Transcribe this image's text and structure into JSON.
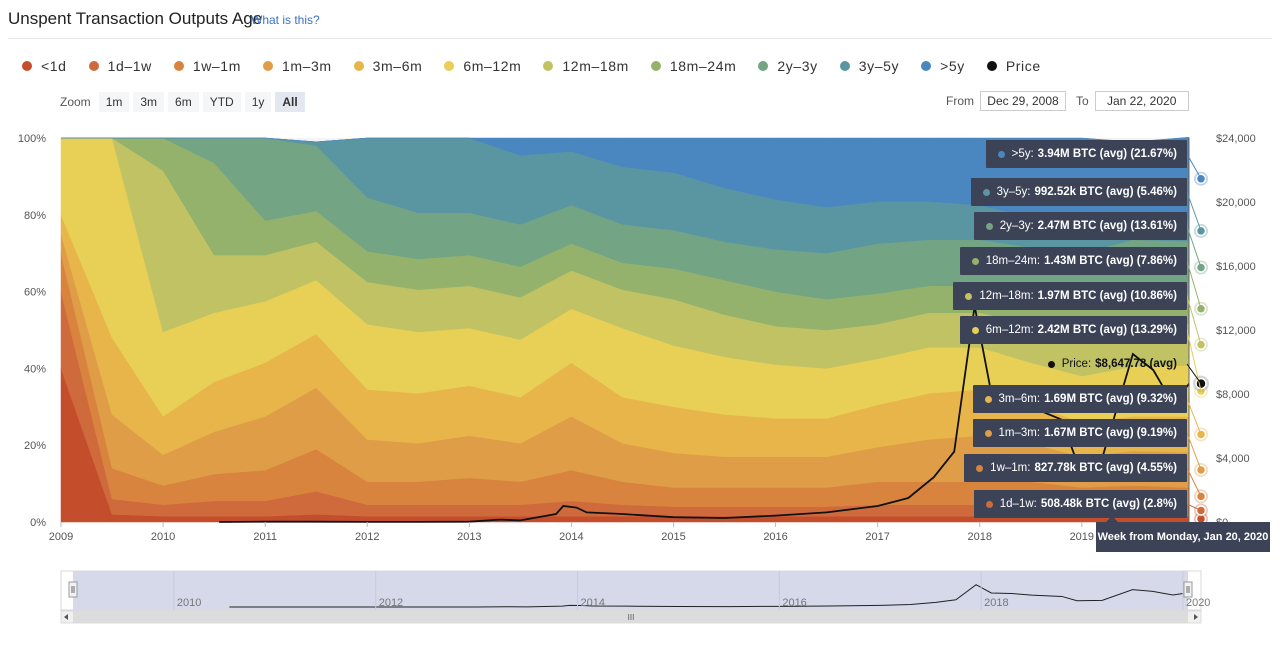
{
  "header": {
    "title": "Unspent Transaction Outputs Age",
    "what_is_this": "What is this?"
  },
  "colors": {
    "lt1d": "#c44e2b",
    "d1w1": "#cf6a3c",
    "w1m1": "#d8843f",
    "m1m3": "#e09d47",
    "m3m6": "#e8b54b",
    "m6m12": "#e8cf56",
    "m12m18": "#c1c264",
    "m18m24": "#94b26c",
    "y2y3": "#73a484",
    "y3y5": "#5a96a2",
    "gt5y": "#4a86bf",
    "price": "#111111"
  },
  "legend": [
    {
      "label": "<1d",
      "color": "#c44e2b"
    },
    {
      "label": "1d–1w",
      "color": "#cf6a3c"
    },
    {
      "label": "1w–1m",
      "color": "#d8843f"
    },
    {
      "label": "1m–3m",
      "color": "#e09d47"
    },
    {
      "label": "3m–6m",
      "color": "#e8b54b"
    },
    {
      "label": "6m–12m",
      "color": "#e8cf56"
    },
    {
      "label": "12m–18m",
      "color": "#c1c264"
    },
    {
      "label": "18m–24m",
      "color": "#94b26c"
    },
    {
      "label": "2y–3y",
      "color": "#73a484"
    },
    {
      "label": "3y–5y",
      "color": "#5a96a2"
    },
    {
      "label": ">5y",
      "color": "#4a86bf"
    },
    {
      "label": "Price",
      "color": "#111111"
    }
  ],
  "zoom": {
    "label": "Zoom",
    "buttons": [
      "1m",
      "3m",
      "6m",
      "YTD",
      "1y",
      "All"
    ],
    "active": "All"
  },
  "range": {
    "from_label": "From",
    "from_value": "Dec 29, 2008",
    "to_label": "To",
    "to_value": "Jan 22, 2020"
  },
  "tooltip": {
    "header": "Week from Monday, Jan 20, 2020",
    "items": [
      {
        "label": ">5y",
        "value": "3.94M BTC (avg) (21.67%)",
        "color": "#4a86bf"
      },
      {
        "label": "3y–5y",
        "value": "992.52k BTC (avg) (5.46%)",
        "color": "#5a96a2"
      },
      {
        "label": "2y–3y",
        "value": "2.47M BTC (avg) (13.61%)",
        "color": "#73a484"
      },
      {
        "label": "18m–24m",
        "value": "1.43M BTC (avg) (7.86%)",
        "color": "#94b26c"
      },
      {
        "label": "12m–18m",
        "value": "1.97M BTC (avg) (10.86%)",
        "color": "#c1c264"
      },
      {
        "label": "6m–12m",
        "value": "2.42M BTC (avg) (13.29%)",
        "color": "#e8cf56"
      },
      {
        "label": "Price",
        "value": "$8,647.78 (avg)",
        "color": "#111111"
      },
      {
        "label": "3m–6m",
        "value": "1.69M BTC (avg) (9.32%)",
        "color": "#e8b54b"
      },
      {
        "label": "1m–3m",
        "value": "1.67M BTC (avg) (9.19%)",
        "color": "#e09d47"
      },
      {
        "label": "1w–1m",
        "value": "827.78k BTC (avg) (4.55%)",
        "color": "#d8843f"
      },
      {
        "label": "1d–1w",
        "value": "508.48k BTC (avg) (2.8%)",
        "color": "#cf6a3c"
      }
    ]
  },
  "navigator": {
    "labels": [
      "2010",
      "2012",
      "2014",
      "2016",
      "2018",
      "2020"
    ],
    "scroll_grip": "III"
  },
  "chart_data": {
    "type": "area",
    "stacking": "percent",
    "title": "Unspent Transaction Outputs Age",
    "x_ticks": [
      "2009",
      "2010",
      "2011",
      "2012",
      "2013",
      "2014",
      "2015",
      "2016",
      "2017",
      "2018",
      "2019"
    ],
    "y_left_ticks": [
      "0%",
      "20%",
      "40%",
      "60%",
      "80%",
      "100%"
    ],
    "y_right_ticks": [
      "$0",
      "$4,000",
      "$8,000",
      "$12,000",
      "$16,000",
      "$20,000",
      "$24,000"
    ],
    "ylim_left": [
      0,
      100
    ],
    "ylim_right": [
      0,
      24000
    ],
    "x": [
      2009.0,
      2009.5,
      2010.0,
      2010.5,
      2011.0,
      2011.5,
      2012.0,
      2012.5,
      2013.0,
      2013.5,
      2014.0,
      2014.5,
      2015.0,
      2015.5,
      2016.0,
      2016.5,
      2017.0,
      2017.5,
      2018.0,
      2018.5,
      2019.0,
      2019.5,
      2020.05
    ],
    "series": [
      {
        "name": "<1d",
        "values": [
          40,
          2,
          1.5,
          1.5,
          1.5,
          2,
          1.5,
          1.5,
          1.5,
          1.5,
          1.5,
          1.5,
          1.5,
          1.5,
          1.5,
          1.5,
          1.5,
          1.5,
          1.5,
          1.5,
          1.5,
          1.5,
          1.6
        ]
      },
      {
        "name": "1d–1w",
        "values": [
          20,
          4,
          3,
          4,
          4,
          6,
          3,
          3,
          3,
          3,
          4,
          3,
          2.5,
          2.5,
          2.5,
          2.5,
          3,
          3,
          3,
          3,
          2.5,
          3,
          2.8
        ]
      },
      {
        "name": "1w–1m",
        "values": [
          10,
          8,
          5,
          7,
          8,
          11,
          6,
          6,
          7,
          6,
          8,
          6,
          5,
          5,
          5,
          5,
          6,
          6,
          6,
          6,
          5,
          5,
          4.55
        ]
      },
      {
        "name": "1m–3m",
        "values": [
          5,
          14,
          8,
          11,
          14,
          16,
          11,
          10,
          11,
          10,
          14,
          10,
          9,
          8,
          8,
          8,
          9,
          11,
          12,
          10,
          8,
          9,
          9.19
        ]
      },
      {
        "name": "3m–6m",
        "values": [
          5,
          20,
          10,
          13,
          14,
          14,
          13,
          13,
          13,
          12,
          14,
          12,
          12,
          11,
          10,
          10,
          11,
          12,
          12,
          10,
          9,
          9,
          9.32
        ]
      },
      {
        "name": "6m–12m",
        "values": [
          20,
          52,
          22,
          18,
          16,
          14,
          17,
          16,
          15,
          15,
          14,
          18,
          16,
          15,
          14,
          13,
          12,
          12,
          11,
          11,
          12,
          13,
          13.29
        ]
      },
      {
        "name": "12m–18m",
        "values": [
          0,
          0,
          42,
          15,
          12,
          10,
          11,
          11,
          11,
          11,
          10,
          10,
          12,
          11,
          10,
          10,
          9,
          9,
          9,
          10,
          10,
          11,
          10.86
        ]
      },
      {
        "name": "18m–24m",
        "values": [
          0,
          0,
          8.5,
          24,
          9,
          8,
          8,
          8,
          8,
          8,
          7,
          7,
          8,
          9,
          9,
          8,
          8,
          7,
          7,
          7,
          8,
          8,
          7.86
        ]
      },
      {
        "name": "2y–3y",
        "values": [
          0,
          0,
          0,
          6.5,
          21.5,
          17,
          14,
          12,
          11,
          11,
          10,
          10,
          10,
          10,
          11,
          12,
          13,
          12,
          12,
          13,
          14,
          14,
          13.61
        ]
      },
      {
        "name": "3y–5y",
        "values": [
          0,
          0,
          0,
          0,
          0,
          1,
          15.5,
          19.5,
          19.5,
          18,
          14,
          15,
          15,
          14,
          13,
          12,
          11,
          10,
          9,
          8,
          7,
          6,
          5.46
        ]
      },
      {
        "name": ">5y",
        "values": [
          0,
          0,
          0,
          0,
          0,
          0,
          0,
          0,
          0,
          4.5,
          3.5,
          7.5,
          9,
          13,
          16,
          18,
          16.5,
          16.5,
          17.5,
          20.5,
          23,
          19.5,
          21.67
        ]
      }
    ],
    "price": {
      "name": "Price",
      "x": [
        2010.55,
        2011.0,
        2011.45,
        2012.0,
        2012.5,
        2013.0,
        2013.3,
        2013.5,
        2013.85,
        2013.92,
        2014.05,
        2014.15,
        2014.5,
        2015.0,
        2015.5,
        2016.0,
        2016.5,
        2017.0,
        2017.3,
        2017.55,
        2017.75,
        2017.95,
        2018.1,
        2018.3,
        2018.5,
        2018.8,
        2018.95,
        2019.2,
        2019.5,
        2019.7,
        2019.9,
        2020.05
      ],
      "y": [
        0,
        20,
        20,
        10,
        10,
        20,
        150,
        100,
        500,
        1000,
        900,
        600,
        500,
        300,
        250,
        400,
        600,
        1000,
        1500,
        2800,
        4400,
        13500,
        8500,
        8200,
        7200,
        6400,
        3800,
        4000,
        10500,
        9500,
        7300,
        8647.78
      ]
    },
    "legend_position": "top",
    "grid": false
  }
}
